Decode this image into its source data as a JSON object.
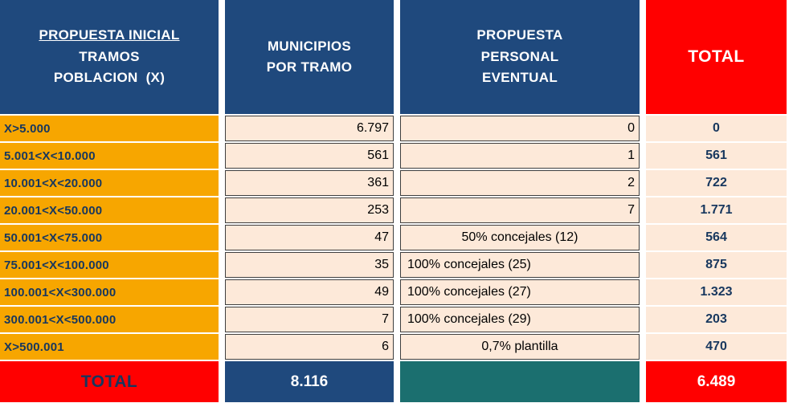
{
  "table": {
    "headers": {
      "col1": {
        "line1": "PROPUESTA INICIAL",
        "line2": "TRAMOS",
        "line3": "POBLACION  (X)"
      },
      "col2": {
        "line1": "MUNICIPIOS",
        "line2": "POR TRAMO"
      },
      "col3": {
        "line1": "PROPUESTA",
        "line2": "PERSONAL",
        "line3": "EVENTUAL"
      },
      "col4": "TOTAL"
    },
    "rows": [
      {
        "tramo": "X>5.000",
        "municipios": "6.797",
        "eventual": "0",
        "total": "0"
      },
      {
        "tramo": "5.001<X<10.000",
        "municipios": "561",
        "eventual": "1",
        "total": "561"
      },
      {
        "tramo": "10.001<X<20.000",
        "municipios": "361",
        "eventual": "2",
        "total": "722"
      },
      {
        "tramo": "20.001<X<50.000",
        "municipios": "253",
        "eventual": "7",
        "total": "1.771"
      },
      {
        "tramo": "50.001<X<75.000",
        "municipios": "47",
        "eventual": "50% concejales (12)",
        "total": "564"
      },
      {
        "tramo": "75.001<X<100.000",
        "municipios": "35",
        "eventual": "100% concejales (25)",
        "total": "875"
      },
      {
        "tramo": "100.001<X<300.000",
        "municipios": "49",
        "eventual": "100% concejales (27)",
        "total": "1.323"
      },
      {
        "tramo": "300.001<X<500.000",
        "municipios": "7",
        "eventual": "100% concejales (29)",
        "total": "203"
      },
      {
        "tramo": "X>500.001",
        "municipios": "6",
        "eventual": "0,7% plantilla",
        "total": "470"
      }
    ],
    "footer": {
      "label": "TOTAL",
      "municipios": "8.116",
      "eventual": "",
      "total": "6.489"
    },
    "colors": {
      "header_blue": "#1F497D",
      "header_red": "#FF0000",
      "tramo_orange": "#F7A600",
      "data_peach": "#FDE9D9",
      "footer_teal": "#1B6F6F",
      "navy_text": "#17375E"
    }
  },
  "chart_data": {
    "type": "table",
    "title": "Propuesta inicial tramos poblacion - personal eventual",
    "columns": [
      "PROPUESTA INICIAL TRAMOS POBLACION (X)",
      "MUNICIPIOS POR TRAMO",
      "PROPUESTA PERSONAL EVENTUAL",
      "TOTAL"
    ],
    "rows": [
      [
        "X>5.000",
        "6.797",
        "0",
        "0"
      ],
      [
        "5.001<X<10.000",
        "561",
        "1",
        "561"
      ],
      [
        "10.001<X<20.000",
        "361",
        "2",
        "722"
      ],
      [
        "20.001<X<50.000",
        "253",
        "7",
        "1.771"
      ],
      [
        "50.001<X<75.000",
        "47",
        "50% concejales (12)",
        "564"
      ],
      [
        "75.001<X<100.000",
        "35",
        "100% concejales (25)",
        "875"
      ],
      [
        "100.001<X<300.000",
        "49",
        "100% concejales (27)",
        "1.323"
      ],
      [
        "300.001<X<500.000",
        "7",
        "100% concejales (29)",
        "203"
      ],
      [
        "X>500.001",
        "6",
        "0,7% plantilla",
        "470"
      ]
    ],
    "totals_row": [
      "TOTAL",
      "8.116",
      "",
      "6.489"
    ]
  }
}
